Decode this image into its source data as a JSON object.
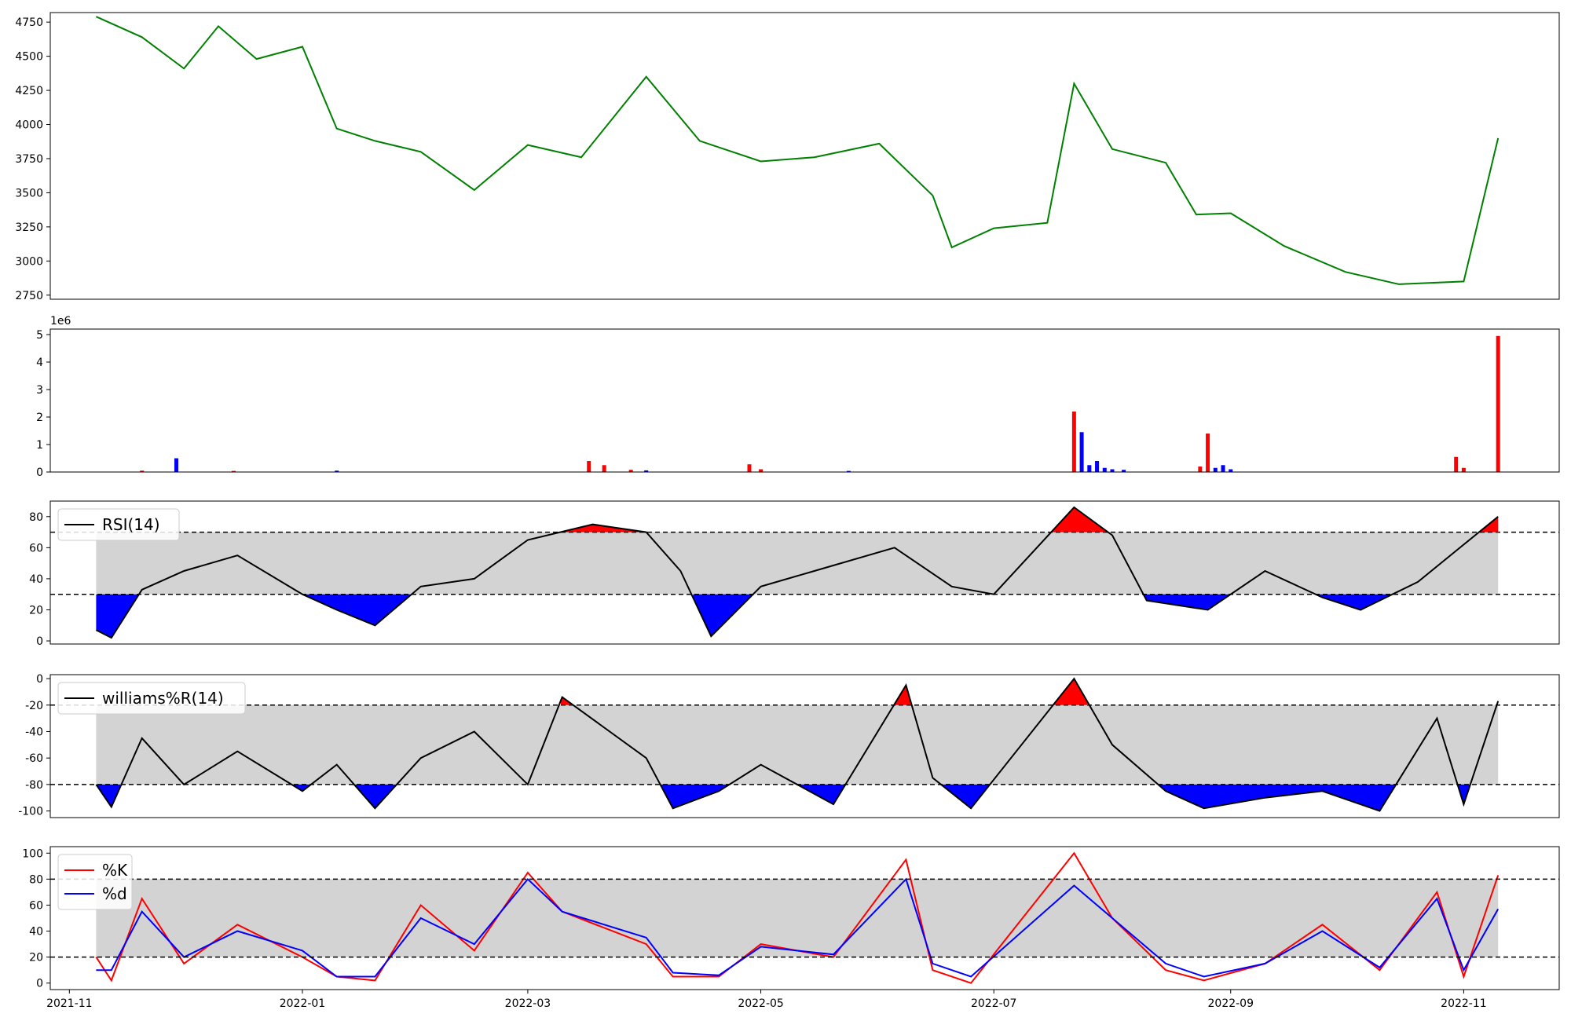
{
  "chart_data": [
    {
      "panel": "price",
      "type": "line",
      "color": "#008000",
      "ylim": [
        2720,
        4820
      ],
      "yticks": [
        "2750",
        "3000",
        "3250",
        "3500",
        "3750",
        "4000",
        "4250",
        "4500",
        "4750"
      ],
      "x": [
        "2021-11-08",
        "2021-11-20",
        "2021-12-01",
        "2021-12-10",
        "2021-12-20",
        "2022-01-01",
        "2022-01-10",
        "2022-01-20",
        "2022-02-01",
        "2022-02-15",
        "2022-03-01",
        "2022-03-15",
        "2022-04-01",
        "2022-04-15",
        "2022-05-01",
        "2022-05-15",
        "2022-06-01",
        "2022-06-15",
        "2022-06-20",
        "2022-07-01",
        "2022-07-15",
        "2022-07-22",
        "2022-08-01",
        "2022-08-15",
        "2022-08-23",
        "2022-09-01",
        "2022-09-15",
        "2022-10-01",
        "2022-10-15",
        "2022-11-01",
        "2022-11-10"
      ],
      "values": [
        4790,
        4640,
        4410,
        4720,
        4480,
        4570,
        3970,
        3880,
        3800,
        3520,
        3850,
        3760,
        4350,
        3880,
        3730,
        3760,
        3860,
        3480,
        3100,
        3240,
        3280,
        4300,
        3820,
        3720,
        3340,
        3350,
        3110,
        2920,
        2830,
        2850,
        3900
      ]
    },
    {
      "panel": "volume",
      "type": "bar",
      "exponent_label": "1e6",
      "ylim": [
        0,
        5.2
      ],
      "yticks": [
        "0",
        "1",
        "2",
        "3",
        "4",
        "5"
      ],
      "up_color": "#ff0000",
      "down_color": "#0000ff",
      "bars": [
        {
          "x": "2021-11-29",
          "v": 0.5,
          "c": "down"
        },
        {
          "x": "2021-11-20",
          "v": 0.05,
          "c": "up"
        },
        {
          "x": "2021-12-14",
          "v": 0.04,
          "c": "up"
        },
        {
          "x": "2022-01-10",
          "v": 0.05,
          "c": "down"
        },
        {
          "x": "2022-03-17",
          "v": 0.4,
          "c": "up"
        },
        {
          "x": "2022-03-21",
          "v": 0.25,
          "c": "up"
        },
        {
          "x": "2022-03-28",
          "v": 0.08,
          "c": "up"
        },
        {
          "x": "2022-04-01",
          "v": 0.06,
          "c": "down"
        },
        {
          "x": "2022-04-28",
          "v": 0.28,
          "c": "up"
        },
        {
          "x": "2022-05-01",
          "v": 0.1,
          "c": "up"
        },
        {
          "x": "2022-05-24",
          "v": 0.04,
          "c": "down"
        },
        {
          "x": "2022-07-22",
          "v": 2.2,
          "c": "up"
        },
        {
          "x": "2022-07-24",
          "v": 1.45,
          "c": "down"
        },
        {
          "x": "2022-07-26",
          "v": 0.25,
          "c": "down"
        },
        {
          "x": "2022-07-28",
          "v": 0.4,
          "c": "down"
        },
        {
          "x": "2022-07-30",
          "v": 0.15,
          "c": "down"
        },
        {
          "x": "2022-08-01",
          "v": 0.1,
          "c": "down"
        },
        {
          "x": "2022-08-04",
          "v": 0.08,
          "c": "down"
        },
        {
          "x": "2022-08-24",
          "v": 0.2,
          "c": "up"
        },
        {
          "x": "2022-08-26",
          "v": 1.4,
          "c": "up"
        },
        {
          "x": "2022-08-28",
          "v": 0.15,
          "c": "down"
        },
        {
          "x": "2022-08-30",
          "v": 0.25,
          "c": "down"
        },
        {
          "x": "2022-09-01",
          "v": 0.1,
          "c": "down"
        },
        {
          "x": "2022-10-30",
          "v": 0.55,
          "c": "up"
        },
        {
          "x": "2022-11-01",
          "v": 0.15,
          "c": "up"
        },
        {
          "x": "2022-11-10",
          "v": 4.95,
          "c": "up"
        }
      ]
    },
    {
      "panel": "rsi",
      "type": "line",
      "legend": "RSI(14)",
      "line_color": "#000000",
      "band_color": "#d3d3d3",
      "upper": 70,
      "lower": 30,
      "ylim": [
        -2,
        90
      ],
      "yticks": [
        "0",
        "20",
        "40",
        "60",
        "80"
      ],
      "x": [
        "2021-11-08",
        "2021-11-12",
        "2021-11-20",
        "2021-12-01",
        "2021-12-15",
        "2022-01-01",
        "2022-01-10",
        "2022-01-20",
        "2022-02-01",
        "2022-02-15",
        "2022-03-01",
        "2022-03-18",
        "2022-04-01",
        "2022-04-10",
        "2022-04-18",
        "2022-05-01",
        "2022-05-15",
        "2022-06-05",
        "2022-06-20",
        "2022-07-01",
        "2022-07-22",
        "2022-08-01",
        "2022-08-10",
        "2022-08-26",
        "2022-09-10",
        "2022-09-25",
        "2022-10-05",
        "2022-10-20",
        "2022-11-01",
        "2022-11-10"
      ],
      "values": [
        7,
        2,
        33,
        45,
        55,
        30,
        20,
        10,
        35,
        40,
        65,
        75,
        70,
        45,
        3,
        35,
        45,
        60,
        35,
        30,
        86,
        68,
        26,
        20,
        45,
        28,
        20,
        38,
        62,
        80
      ]
    },
    {
      "panel": "williams",
      "type": "line",
      "legend": "williams%R(14)",
      "line_color": "#000000",
      "band_color": "#d3d3d3",
      "upper": -20,
      "lower": -80,
      "ylim": [
        -105,
        3
      ],
      "yticks": [
        "-100",
        "-80",
        "-60",
        "-40",
        "-20",
        "0"
      ],
      "x": [
        "2021-11-08",
        "2021-11-12",
        "2021-11-20",
        "2021-12-01",
        "2021-12-15",
        "2022-01-01",
        "2022-01-10",
        "2022-01-20",
        "2022-02-01",
        "2022-02-15",
        "2022-03-01",
        "2022-03-10",
        "2022-04-01",
        "2022-04-08",
        "2022-04-20",
        "2022-05-01",
        "2022-05-20",
        "2022-06-08",
        "2022-06-15",
        "2022-06-25",
        "2022-07-22",
        "2022-08-01",
        "2022-08-15",
        "2022-08-25",
        "2022-09-10",
        "2022-09-25",
        "2022-10-10",
        "2022-10-25",
        "2022-11-01",
        "2022-11-10"
      ],
      "values": [
        -80,
        -97,
        -45,
        -80,
        -55,
        -85,
        -65,
        -98,
        -60,
        -40,
        -80,
        -14,
        -60,
        -98,
        -85,
        -65,
        -95,
        -5,
        -75,
        -98,
        0,
        -50,
        -85,
        -98,
        -90,
        -85,
        -100,
        -30,
        -95,
        -17
      ]
    },
    {
      "panel": "stochastic",
      "type": "line",
      "ylim": [
        -5,
        105
      ],
      "yticks": [
        "0",
        "20",
        "40",
        "60",
        "80",
        "100"
      ],
      "band_color": "#d3d3d3",
      "upper": 80,
      "lower": 20,
      "xticks": [
        "2021-11",
        "2022-01",
        "2022-03",
        "2022-05",
        "2022-07",
        "2022-09",
        "2022-11"
      ],
      "x": [
        "2021-11-08",
        "2021-11-12",
        "2021-11-20",
        "2021-12-01",
        "2021-12-15",
        "2022-01-01",
        "2022-01-10",
        "2022-01-20",
        "2022-02-01",
        "2022-02-15",
        "2022-03-01",
        "2022-03-10",
        "2022-04-01",
        "2022-04-08",
        "2022-04-20",
        "2022-05-01",
        "2022-05-20",
        "2022-06-08",
        "2022-06-15",
        "2022-06-25",
        "2022-07-22",
        "2022-08-01",
        "2022-08-15",
        "2022-08-25",
        "2022-09-10",
        "2022-09-25",
        "2022-10-10",
        "2022-10-25",
        "2022-11-01",
        "2022-11-10"
      ],
      "series": [
        {
          "name": "%K",
          "color": "#ff0000",
          "values": [
            20,
            2,
            65,
            15,
            45,
            20,
            5,
            2,
            60,
            25,
            85,
            55,
            30,
            5,
            5,
            30,
            20,
            95,
            10,
            0,
            100,
            50,
            10,
            2,
            15,
            45,
            10,
            70,
            5,
            83
          ]
        },
        {
          "name": "%d",
          "color": "#0000ff",
          "values": [
            10,
            10,
            55,
            20,
            40,
            25,
            5,
            5,
            50,
            30,
            80,
            55,
            35,
            8,
            6,
            28,
            22,
            80,
            15,
            5,
            75,
            50,
            15,
            5,
            15,
            40,
            12,
            65,
            10,
            57
          ]
        }
      ]
    }
  ]
}
